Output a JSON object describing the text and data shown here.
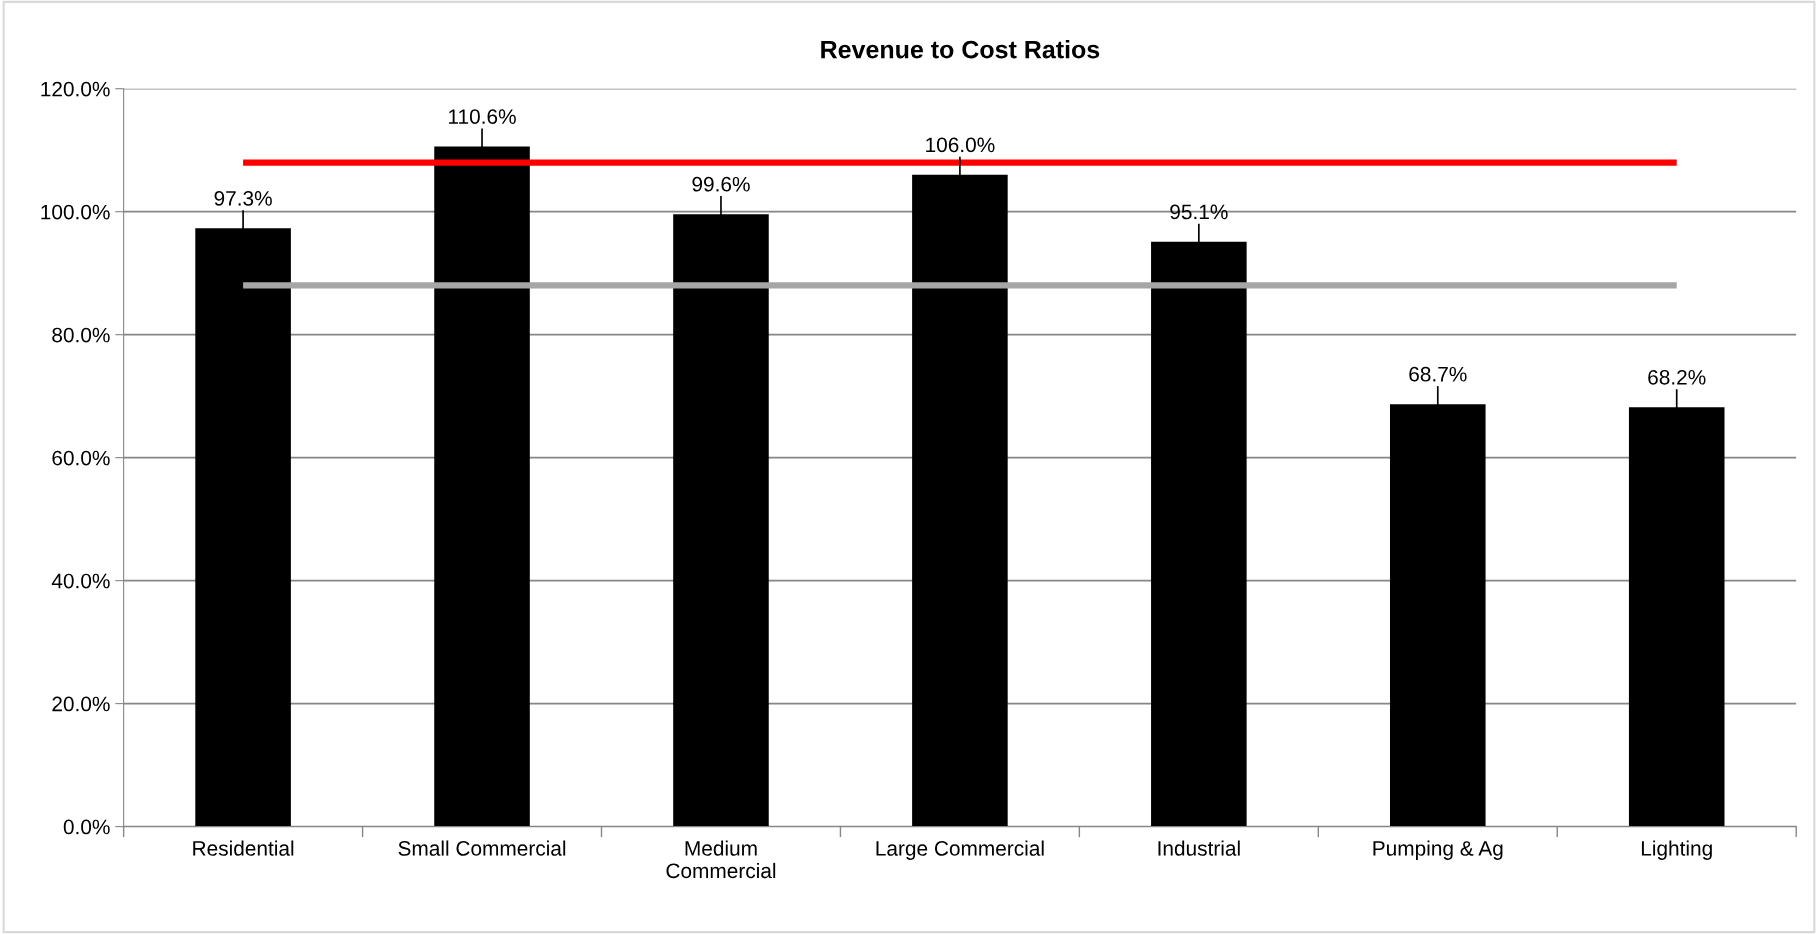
{
  "chart_data": {
    "type": "bar",
    "title": "Revenue to Cost Ratios",
    "categories": [
      "Residential",
      "Small Commercial",
      "Medium\nCommercial",
      "Large Commercial",
      "Industrial",
      "Pumping & Ag",
      "Lighting"
    ],
    "values": [
      97.3,
      110.6,
      99.6,
      106.0,
      95.1,
      68.7,
      68.2
    ],
    "color": "#000000",
    "value_labels": [
      "97.3%",
      "110.6%",
      "99.6%",
      "106.0%",
      "95.1%",
      "68.7%",
      "68.2%"
    ],
    "ylim": [
      0,
      120
    ],
    "yticks": [
      {
        "value": 0,
        "label": "0.0%"
      },
      {
        "value": 20,
        "label": "20.0%"
      },
      {
        "value": 40,
        "label": "40.0%"
      },
      {
        "value": 60,
        "label": "60.0%"
      },
      {
        "value": 80,
        "label": "80.0%"
      },
      {
        "value": 100,
        "label": "100.0%"
      },
      {
        "value": 120,
        "label": "120.0%"
      }
    ],
    "grid": "y",
    "legend": false,
    "ref_lines": [
      {
        "axis": "y",
        "value": 108,
        "color": "#ff0000"
      },
      {
        "axis": "y",
        "value": 88,
        "color": "#a6a6a6"
      }
    ]
  }
}
